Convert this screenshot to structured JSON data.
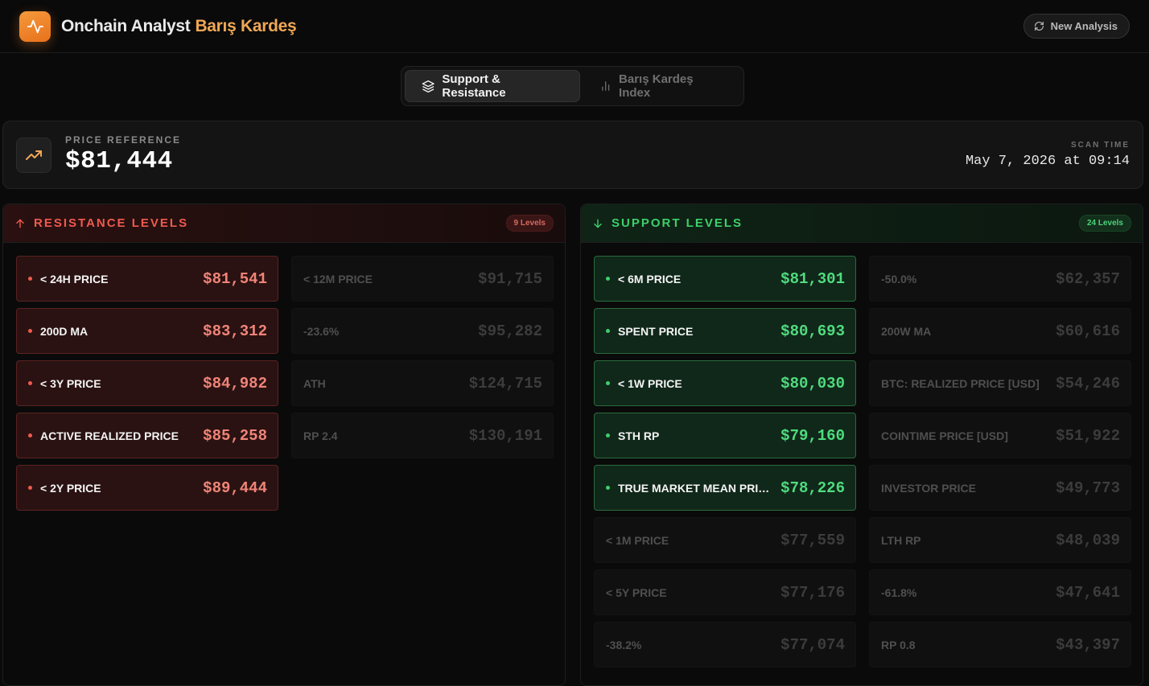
{
  "header": {
    "title": "Onchain Analyst",
    "title_accent": "Barış Kardeş",
    "new_analysis_label": "New Analysis"
  },
  "tabs": [
    {
      "label": "Support & Resistance",
      "icon": "layers-icon",
      "active": true
    },
    {
      "label": "Barış Kardeş Index",
      "icon": "bar-chart-icon",
      "active": false
    }
  ],
  "price_reference": {
    "label": "PRICE REFERENCE",
    "value": "$81,444",
    "scan_label": "SCAN TIME",
    "scan_time": "May 7, 2026 at 09:14"
  },
  "resistance": {
    "title": "RESISTANCE LEVELS",
    "badge": "9 Levels",
    "primary": [
      {
        "label": "< 24H PRICE",
        "value": "$81,541"
      },
      {
        "label": "200D MA",
        "value": "$83,312"
      },
      {
        "label": "< 3Y PRICE",
        "value": "$84,982"
      },
      {
        "label": "ACTIVE REALIZED PRICE",
        "value": "$85,258"
      },
      {
        "label": "< 2Y PRICE",
        "value": "$89,444"
      }
    ],
    "secondary": [
      {
        "label": "< 12M PRICE",
        "value": "$91,715"
      },
      {
        "label": "-23.6%",
        "value": "$95,282"
      },
      {
        "label": "ATH",
        "value": "$124,715"
      },
      {
        "label": "RP 2.4",
        "value": "$130,191"
      }
    ]
  },
  "support": {
    "title": "SUPPORT LEVELS",
    "badge": "24 Levels",
    "primary": [
      {
        "label": "< 6M PRICE",
        "value": "$81,301"
      },
      {
        "label": "SPENT PRICE",
        "value": "$80,693"
      },
      {
        "label": "< 1W PRICE",
        "value": "$80,030"
      },
      {
        "label": "STH RP",
        "value": "$79,160"
      },
      {
        "label": "TRUE MARKET MEAN PRICE",
        "value": "$78,226"
      },
      {
        "label": "< 1M PRICE",
        "value": "$77,559"
      },
      {
        "label": "< 5Y PRICE",
        "value": "$77,176"
      },
      {
        "label": "-38.2%",
        "value": "$77,074"
      }
    ],
    "secondary": [
      {
        "label": "-50.0%",
        "value": "$62,357"
      },
      {
        "label": "200W MA",
        "value": "$60,616"
      },
      {
        "label": "BTC: REALIZED PRICE [USD]",
        "value": "$54,246"
      },
      {
        "label": "COINTIME PRICE [USD]",
        "value": "$51,922"
      },
      {
        "label": "INVESTOR PRICE",
        "value": "$49,773"
      },
      {
        "label": "LTH RP",
        "value": "$48,039"
      },
      {
        "label": "-61.8%",
        "value": "$47,641"
      },
      {
        "label": "RP 0.8",
        "value": "$43,397"
      }
    ]
  },
  "colors": {
    "accent": "#f0a755",
    "resistance": "#ef5a4e",
    "support": "#3ecf6a",
    "background": "#0a0a0a"
  }
}
